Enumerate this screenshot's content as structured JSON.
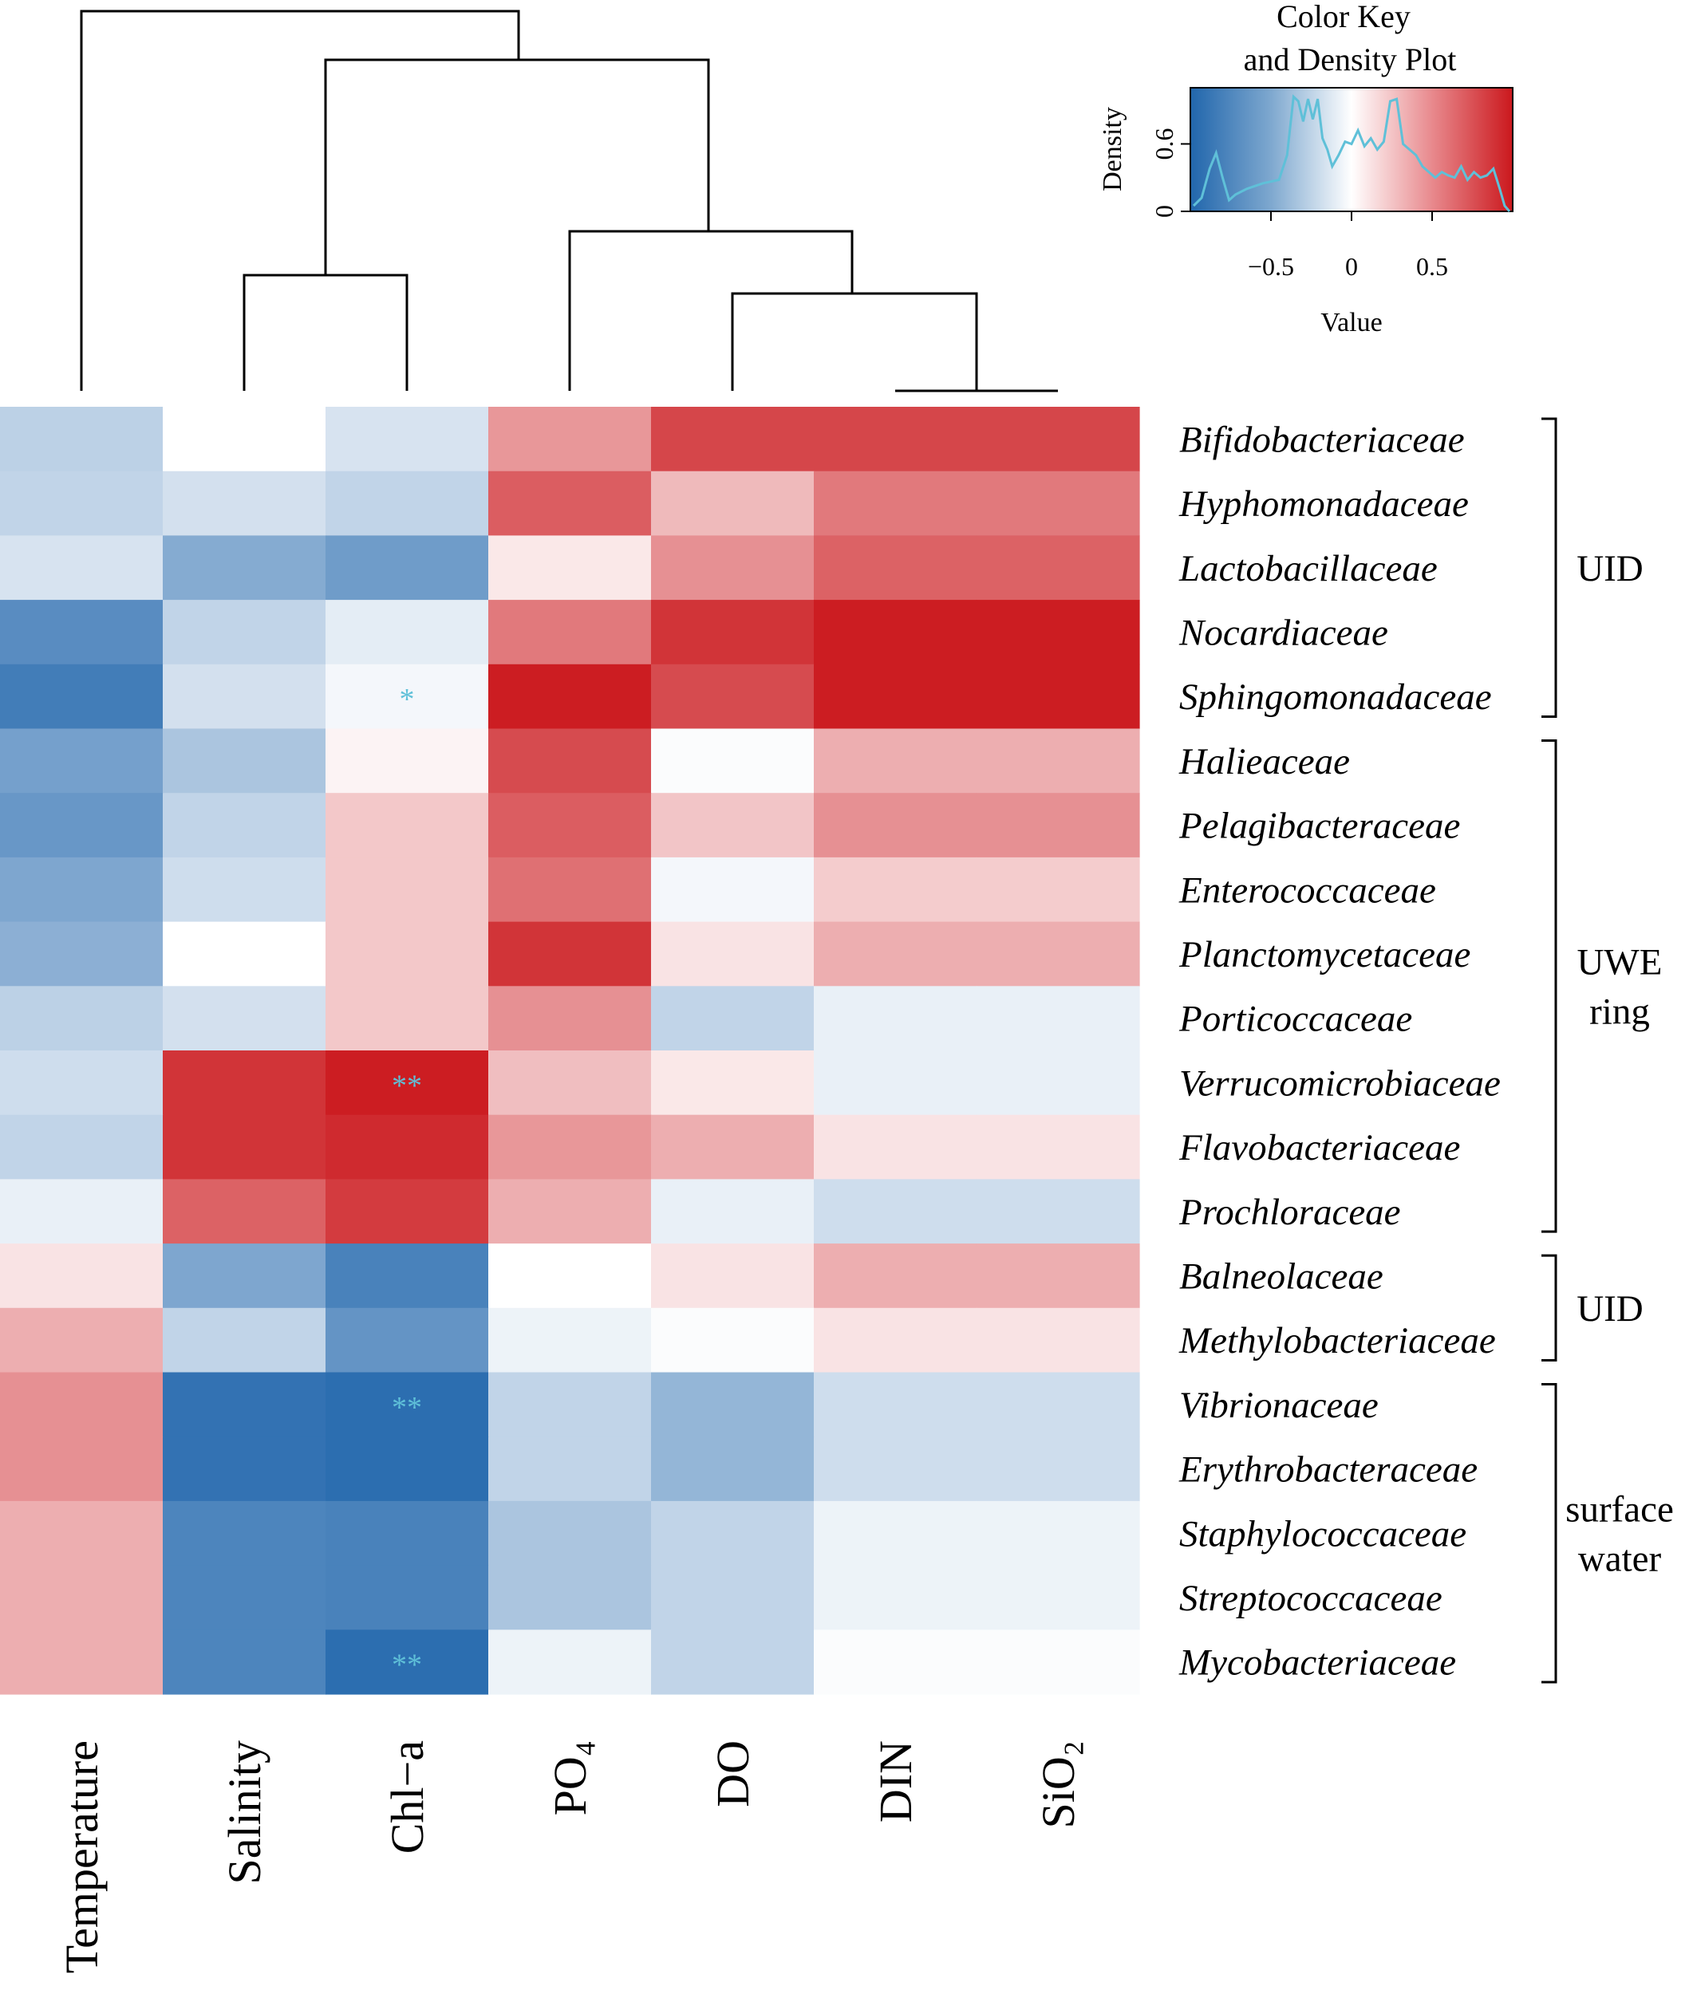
{
  "chart_data": {
    "type": "heatmap",
    "title": "",
    "columns": [
      "Temperature",
      "Salinity",
      "Chl−a",
      "PO₄",
      "DO",
      "DIN",
      "SiO₂"
    ],
    "rows": [
      "Bifidobacteriaceae",
      "Hyphomonadaceae",
      "Lactobacillaceae",
      "Nocardiaceae",
      "Sphingomonadaceae",
      "Halieaceae",
      "Pelagibacteraceae",
      "Enterococcaceae",
      "Planctomycetaceae",
      "Porticoccaceae",
      "Verrucomicrobiaceae",
      "Flavobacteriaceae",
      "Prochloraceae",
      "Balneolaceae",
      "Methylobacteriaceae",
      "Vibrionaceae",
      "Erythrobacteraceae",
      "Staphylococcaceae",
      "Streptococcaceae",
      "Mycobacteriaceae"
    ],
    "values": [
      [
        -0.3,
        0.0,
        -0.18,
        0.45,
        0.8,
        0.8,
        0.8
      ],
      [
        -0.28,
        -0.2,
        -0.28,
        0.7,
        0.3,
        0.58,
        0.58
      ],
      [
        -0.18,
        -0.55,
        -0.65,
        0.1,
        0.48,
        0.68,
        0.68
      ],
      [
        -0.75,
        -0.28,
        -0.12,
        0.58,
        0.88,
        0.98,
        0.98
      ],
      [
        -0.85,
        -0.2,
        -0.05,
        0.98,
        0.78,
        0.98,
        0.98
      ],
      [
        -0.62,
        -0.38,
        0.05,
        0.78,
        -0.02,
        0.35,
        0.35
      ],
      [
        -0.68,
        -0.28,
        0.24,
        0.7,
        0.25,
        0.48,
        0.48
      ],
      [
        -0.58,
        -0.22,
        0.24,
        0.62,
        -0.05,
        0.22,
        0.22
      ],
      [
        -0.52,
        0.0,
        0.24,
        0.88,
        0.12,
        0.35,
        0.35
      ],
      [
        -0.3,
        -0.2,
        0.24,
        0.48,
        -0.28,
        -0.1,
        -0.1
      ],
      [
        -0.22,
        0.88,
        0.98,
        0.28,
        0.1,
        -0.1,
        -0.1
      ],
      [
        -0.28,
        0.88,
        0.92,
        0.45,
        0.35,
        0.12,
        0.12
      ],
      [
        -0.1,
        0.68,
        0.85,
        0.35,
        -0.1,
        -0.22,
        -0.22
      ],
      [
        0.12,
        -0.58,
        -0.82,
        0.0,
        0.12,
        0.35,
        0.35
      ],
      [
        0.35,
        -0.28,
        -0.7,
        -0.08,
        -0.02,
        0.12,
        0.12
      ],
      [
        0.48,
        -0.92,
        -0.95,
        -0.28,
        -0.48,
        -0.22,
        -0.22
      ],
      [
        0.48,
        -0.92,
        -0.95,
        -0.28,
        -0.48,
        -0.22,
        -0.22
      ],
      [
        0.35,
        -0.8,
        -0.82,
        -0.38,
        -0.28,
        -0.08,
        -0.08
      ],
      [
        0.35,
        -0.8,
        -0.82,
        -0.38,
        -0.28,
        -0.08,
        -0.08
      ],
      [
        0.35,
        -0.8,
        -0.95,
        -0.08,
        -0.28,
        -0.02,
        -0.02
      ]
    ],
    "significance": [
      {
        "row": 4,
        "col": 2,
        "mark": "*"
      },
      {
        "row": 10,
        "col": 2,
        "mark": "**"
      },
      {
        "row": 15,
        "col": 2,
        "mark": "**"
      },
      {
        "row": 19,
        "col": 2,
        "mark": "**"
      }
    ],
    "groups": [
      {
        "label": "UID",
        "rows": [
          0,
          4
        ]
      },
      {
        "label": "UWE ring",
        "rows": [
          5,
          12
        ]
      },
      {
        "label": "UID",
        "rows": [
          13,
          14
        ]
      },
      {
        "label": "surface water",
        "rows": [
          15,
          19
        ]
      }
    ],
    "color_scale": {
      "min": -1,
      "mid": 0,
      "max": 1,
      "low_color": "#2166ac",
      "mid_color": "#ffffff",
      "high_color": "#cb181d"
    },
    "color_key": {
      "title_line1": "Color Key",
      "title_line2": "and Density Plot",
      "xlabel": "Value",
      "ylabel": "Density",
      "x_ticks": [
        -0.5,
        0,
        0.5
      ],
      "x_tick_labels": [
        "−0.5",
        "0",
        "0.5"
      ],
      "y_ticks": [
        0,
        0.6
      ],
      "y_tick_labels": [
        "0",
        "0.6"
      ],
      "xlim": [
        -1,
        1
      ],
      "ylim": [
        0,
        1.1
      ],
      "density_color": "#5fc0d8",
      "density_x": [
        -0.98,
        -0.93,
        -0.88,
        -0.84,
        -0.8,
        -0.76,
        -0.72,
        -0.65,
        -0.55,
        -0.45,
        -0.4,
        -0.36,
        -0.33,
        -0.3,
        -0.27,
        -0.24,
        -0.21,
        -0.18,
        -0.15,
        -0.12,
        -0.08,
        -0.04,
        0.0,
        0.04,
        0.08,
        0.12,
        0.16,
        0.2,
        0.24,
        0.28,
        0.32,
        0.36,
        0.4,
        0.44,
        0.48,
        0.52,
        0.56,
        0.6,
        0.64,
        0.68,
        0.72,
        0.76,
        0.8,
        0.84,
        0.88,
        0.92,
        0.95,
        0.98
      ],
      "density_y": [
        0.05,
        0.12,
        0.38,
        0.52,
        0.3,
        0.1,
        0.15,
        0.2,
        0.25,
        0.28,
        0.5,
        1.02,
        0.98,
        0.8,
        1.0,
        0.82,
        1.0,
        0.65,
        0.55,
        0.4,
        0.5,
        0.62,
        0.6,
        0.72,
        0.58,
        0.65,
        0.55,
        0.62,
        0.98,
        1.0,
        0.6,
        0.55,
        0.5,
        0.4,
        0.35,
        0.3,
        0.35,
        0.32,
        0.3,
        0.4,
        0.28,
        0.35,
        0.3,
        0.32,
        0.38,
        0.2,
        0.05,
        0.0
      ]
    }
  }
}
